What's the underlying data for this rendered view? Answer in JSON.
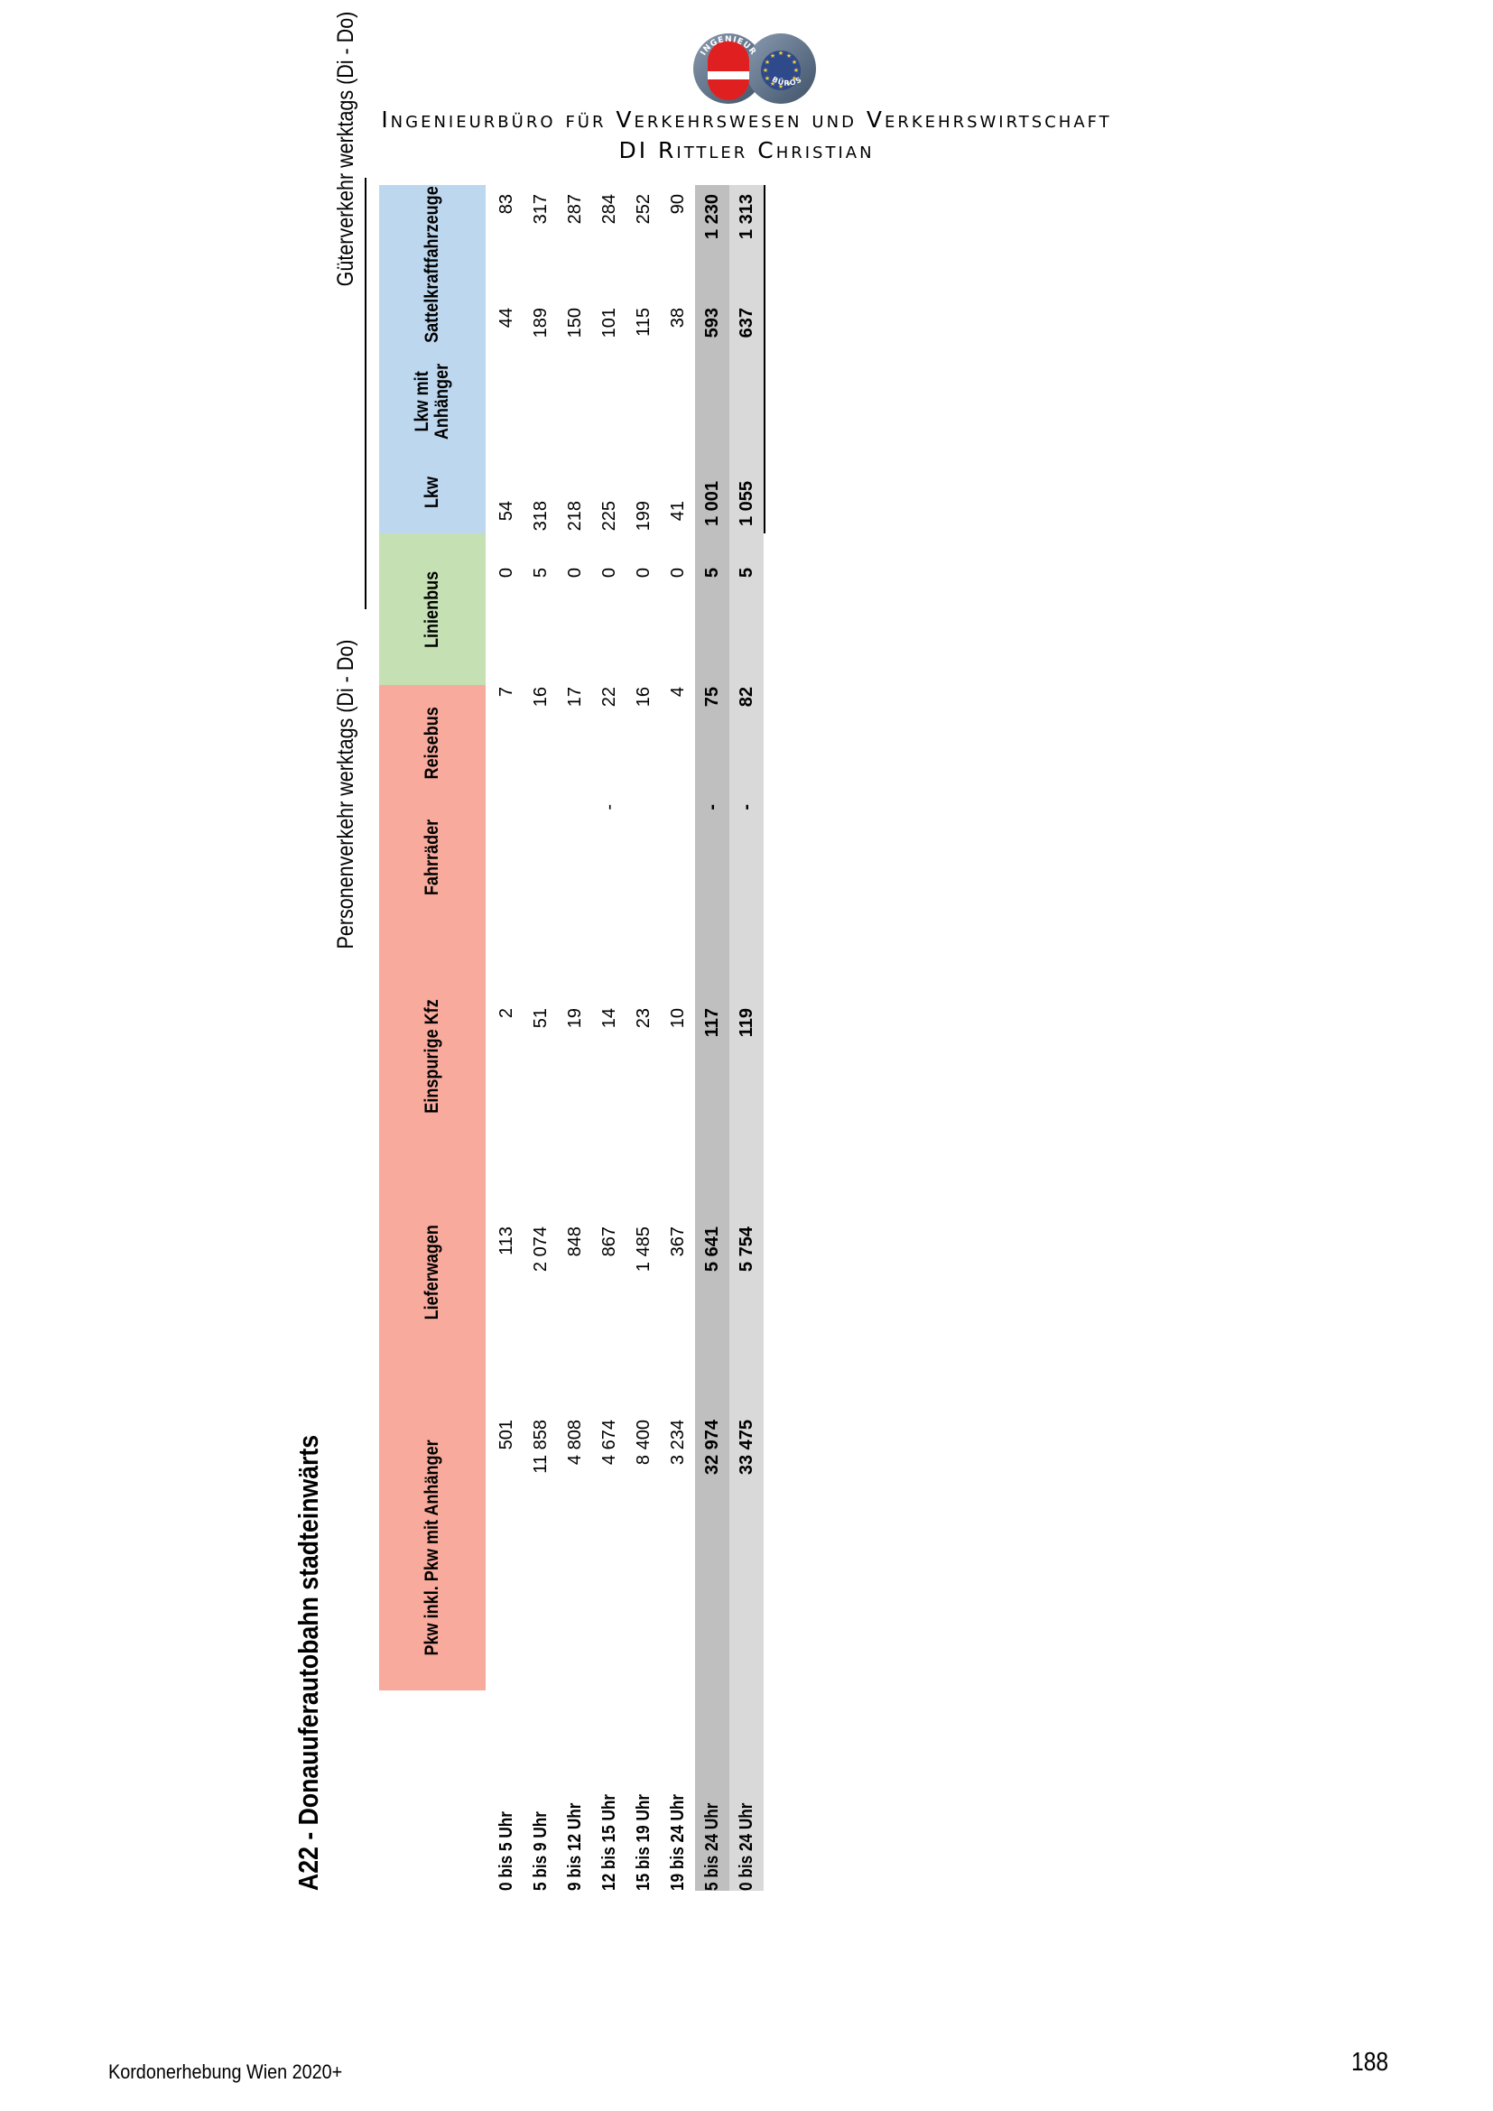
{
  "header": {
    "logo_text_top": "INGENIEUR",
    "logo_text_bottom": "BÜROS",
    "company_line1": "Ingenieurbüro für Verkehrswesen und Verkehrswirtschaft",
    "company_line2": "DI Rittler Christian"
  },
  "table": {
    "title": "A22 - Donauuferautobahn stadteinwärts",
    "group_personen": "Personenverkehr werktags (Di - Do)",
    "group_gueter": "Güterverkehr werktags (Di - Do)",
    "columns": [
      "Pkw inkl. Pkw mit Anhänger",
      "Lieferwagen",
      "Einspurige Kfz",
      "Fahrräder",
      "Reisebus",
      "Linienbus",
      "Lkw",
      "Lkw mit Anhänger",
      "Sattelkraftfahrzeuge"
    ],
    "column_lkw_anh_line1": "Lkw mit",
    "column_lkw_anh_line2": "Anhänger",
    "rows": [
      {
        "label": "0 bis 5 Uhr",
        "values": [
          "501",
          "113",
          "2",
          "",
          "7",
          "0",
          "54",
          "44",
          "83"
        ]
      },
      {
        "label": "5 bis 9 Uhr",
        "values": [
          "11 858",
          "2 074",
          "51",
          "",
          "16",
          "5",
          "318",
          "189",
          "317"
        ]
      },
      {
        "label": "9 bis 12 Uhr",
        "values": [
          "4 808",
          "848",
          "19",
          "",
          "17",
          "0",
          "218",
          "150",
          "287"
        ]
      },
      {
        "label": "12 bis 15 Uhr",
        "values": [
          "4 674",
          "867",
          "14",
          "-",
          "22",
          "0",
          "225",
          "101",
          "284"
        ]
      },
      {
        "label": "15 bis 19 Uhr",
        "values": [
          "8 400",
          "1 485",
          "23",
          "",
          "16",
          "0",
          "199",
          "115",
          "252"
        ]
      },
      {
        "label": "19 bis 24 Uhr",
        "values": [
          "3 234",
          "367",
          "10",
          "",
          "4",
          "0",
          "41",
          "38",
          "90"
        ]
      }
    ],
    "sum_rows": [
      {
        "label": "5 bis 24 Uhr",
        "values": [
          "32 974",
          "5 641",
          "117",
          "-",
          "75",
          "5",
          "1 001",
          "593",
          "1 230"
        ]
      },
      {
        "label": "0 bis 24 Uhr",
        "values": [
          "33 475",
          "5 754",
          "119",
          "-",
          "82",
          "5",
          "1 055",
          "637",
          "1 313"
        ]
      }
    ]
  },
  "footer": {
    "left": "Kordonerhebung Wien 2020+",
    "page_number": "188"
  },
  "colors": {
    "personen": "#f8aa9c",
    "linienbus": "#c5e0b3",
    "gueter": "#bdd7ee",
    "sum1": "#bfbfbf",
    "sum2": "#d9d9d9"
  }
}
